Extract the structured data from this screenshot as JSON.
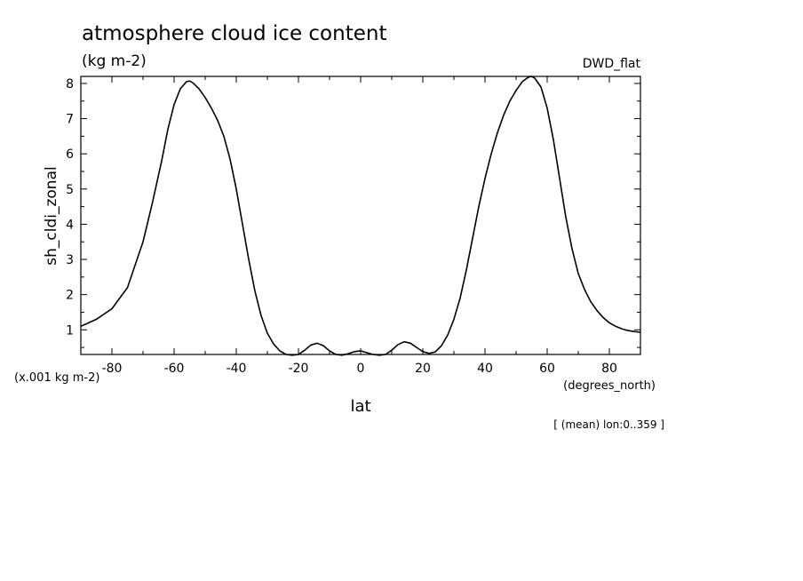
{
  "chart_data": {
    "type": "line",
    "title": "atmosphere cloud ice content",
    "units_label": "(kg m-2)",
    "model_label": "DWD_flat",
    "ylabel": "sh_cldi_zonal",
    "xlabel": "lat",
    "x_units_label": "(degrees_north)",
    "y_scale_label": "(x.001 kg m-2)",
    "footer": "[ (mean) lon:0..359 ]",
    "xlim": [
      -90,
      90
    ],
    "ylim": [
      0.3,
      8.2
    ],
    "x_ticks": [
      -80,
      -60,
      -40,
      -20,
      0,
      20,
      40,
      60,
      80
    ],
    "y_ticks": [
      1,
      2,
      3,
      4,
      5,
      6,
      7,
      8
    ],
    "x_tick_labels": [
      "-80",
      "-60",
      "-40",
      "-20",
      "0",
      "20",
      "40",
      "60",
      "80"
    ],
    "y_tick_labels": [
      "1",
      "2",
      "3",
      "4",
      "5",
      "6",
      "7",
      "8"
    ],
    "series": [
      {
        "x": [
          -90,
          -85,
          -80,
          -75,
          -70,
          -67,
          -64,
          -62,
          -60,
          -58,
          -56,
          -55,
          -54,
          -52,
          -50,
          -48,
          -46,
          -44,
          -42,
          -40,
          -38,
          -36,
          -34,
          -32,
          -30,
          -28,
          -26,
          -24,
          -22,
          -20,
          -18,
          -16,
          -14,
          -12,
          -10,
          -8,
          -6,
          -4,
          -2,
          0,
          2,
          4,
          6,
          8,
          10,
          12,
          14,
          16,
          18,
          20,
          22,
          24,
          26,
          28,
          30,
          32,
          34,
          36,
          38,
          40,
          42,
          44,
          46,
          48,
          50,
          52,
          54,
          55,
          56,
          58,
          60,
          62,
          64,
          66,
          68,
          70,
          72,
          74,
          76,
          78,
          80,
          82,
          84,
          86,
          88,
          90
        ],
        "y": [
          1.1,
          1.3,
          1.6,
          2.2,
          3.5,
          4.6,
          5.8,
          6.7,
          7.4,
          7.85,
          8.05,
          8.07,
          8.02,
          7.85,
          7.6,
          7.3,
          6.95,
          6.5,
          5.85,
          5.0,
          4.0,
          3.0,
          2.1,
          1.4,
          0.9,
          0.6,
          0.4,
          0.3,
          0.28,
          0.3,
          0.42,
          0.57,
          0.62,
          0.55,
          0.4,
          0.3,
          0.28,
          0.32,
          0.38,
          0.4,
          0.35,
          0.3,
          0.28,
          0.3,
          0.42,
          0.58,
          0.66,
          0.62,
          0.5,
          0.38,
          0.33,
          0.37,
          0.55,
          0.85,
          1.3,
          1.9,
          2.7,
          3.6,
          4.5,
          5.3,
          6.0,
          6.6,
          7.1,
          7.5,
          7.8,
          8.05,
          8.18,
          8.2,
          8.15,
          7.9,
          7.3,
          6.4,
          5.3,
          4.2,
          3.3,
          2.6,
          2.15,
          1.8,
          1.55,
          1.35,
          1.2,
          1.1,
          1.03,
          0.98,
          0.95,
          0.93
        ]
      }
    ]
  }
}
